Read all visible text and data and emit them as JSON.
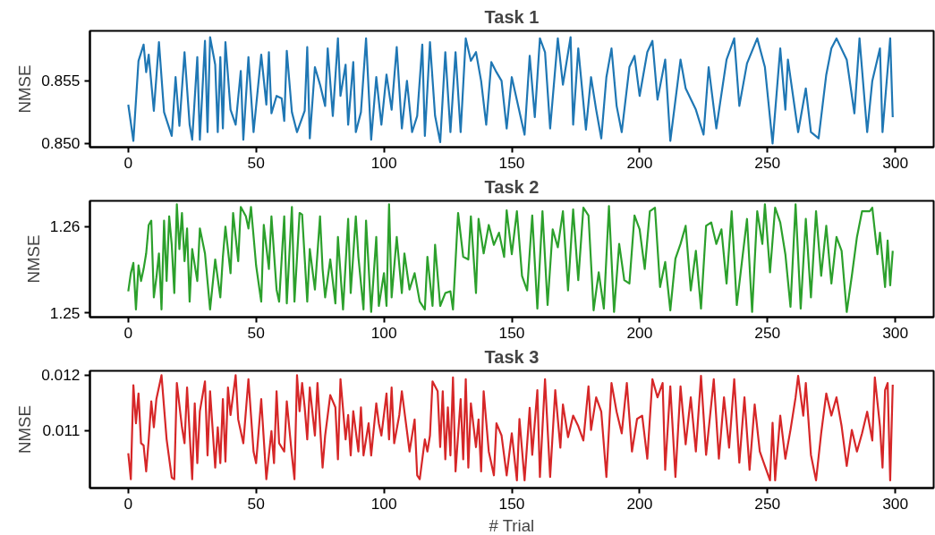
{
  "chart_data": [
    {
      "type": "line",
      "title": "Task 1",
      "ylabel": "NMSE",
      "xlim": [
        -15,
        315
      ],
      "xticks": [
        0,
        50,
        100,
        150,
        200,
        250,
        300
      ],
      "ylim": [
        0.8497,
        0.859
      ],
      "yticks": [
        {
          "value": 0.85,
          "label": "0.850"
        },
        0.855
      ],
      "line_style": "solid",
      "marker": "none",
      "series": [
        {
          "color": "#1f77b4",
          "x": [
            0,
            2,
            4,
            6,
            7,
            8,
            10,
            12,
            14,
            17,
            18.5,
            20,
            22,
            24,
            25,
            27,
            28,
            30,
            31,
            32,
            34,
            35,
            36,
            37,
            38,
            40,
            42,
            44,
            45,
            47,
            49,
            52,
            54,
            55,
            56,
            58,
            60,
            61,
            62,
            64,
            66,
            69,
            70,
            71,
            73,
            75,
            77,
            78,
            80,
            82,
            83,
            85,
            86,
            88,
            89,
            91,
            93,
            95,
            97,
            99,
            101,
            103,
            105,
            107,
            109,
            111,
            113,
            115,
            116,
            118,
            120,
            122,
            124,
            126,
            128,
            130,
            132,
            134,
            136,
            138,
            140,
            142,
            144,
            146,
            148,
            150,
            155,
            157,
            159,
            161,
            163,
            165,
            168,
            170,
            173,
            174,
            176,
            179,
            181,
            183,
            185,
            187,
            189,
            191,
            193,
            196,
            198,
            200,
            203,
            205,
            207,
            210,
            212,
            216,
            218,
            222,
            225,
            227,
            230,
            234,
            237,
            239,
            242,
            246,
            249,
            252,
            255,
            257,
            258,
            262,
            265,
            267,
            270,
            273,
            275,
            277,
            281,
            284,
            286,
            289,
            291,
            294,
            295,
            298,
            299
          ],
          "values": [
            0.8531,
            0.8502,
            0.8566,
            0.8579,
            0.8557,
            0.8571,
            0.8526,
            0.8581,
            0.8525,
            0.8506,
            0.8553,
            0.8514,
            0.8573,
            0.8515,
            0.8503,
            0.8569,
            0.8503,
            0.8582,
            0.8509,
            0.8585,
            0.8563,
            0.8509,
            0.8569,
            0.8512,
            0.8581,
            0.8527,
            0.8515,
            0.8558,
            0.8503,
            0.8569,
            0.8509,
            0.8571,
            0.8531,
            0.8573,
            0.8524,
            0.8538,
            0.8536,
            0.8518,
            0.8574,
            0.8525,
            0.8509,
            0.8526,
            0.8577,
            0.8504,
            0.8561,
            0.8547,
            0.853,
            0.8576,
            0.8522,
            0.8584,
            0.8538,
            0.8563,
            0.8515,
            0.8565,
            0.8509,
            0.8525,
            0.8584,
            0.8503,
            0.8553,
            0.8515,
            0.8555,
            0.8527,
            0.8577,
            0.8512,
            0.855,
            0.8509,
            0.8522,
            0.8579,
            0.8506,
            0.8581,
            0.8522,
            0.8501,
            0.8573,
            0.8509,
            0.8573,
            0.8509,
            0.8584,
            0.8566,
            0.8573,
            0.855,
            0.8515,
            0.8565,
            0.8557,
            0.855,
            0.8512,
            0.8553,
            0.8507,
            0.857,
            0.8521,
            0.8584,
            0.8573,
            0.8512,
            0.8584,
            0.8547,
            0.8585,
            0.8515,
            0.8576,
            0.8511,
            0.8553,
            0.8527,
            0.8504,
            0.8553,
            0.8576,
            0.853,
            0.8509,
            0.8561,
            0.857,
            0.8538,
            0.8573,
            0.8582,
            0.8535,
            0.8567,
            0.8502,
            0.8567,
            0.8544,
            0.8527,
            0.8507,
            0.8561,
            0.8512,
            0.8567,
            0.8584,
            0.853,
            0.8564,
            0.8584,
            0.8561,
            0.85,
            0.8576,
            0.8527,
            0.8567,
            0.8509,
            0.8544,
            0.8509,
            0.8504,
            0.8555,
            0.8576,
            0.8584,
            0.8567,
            0.8524,
            0.8584,
            0.8509,
            0.855,
            0.8576,
            0.8509,
            0.8584,
            0.8521
          ]
        }
      ]
    },
    {
      "type": "line",
      "title": "Task 2",
      "ylabel": "NMSE",
      "xlim": [
        -15,
        315
      ],
      "xticks": [
        0,
        50,
        100,
        150,
        200,
        250,
        300
      ],
      "ylim": [
        1.2495,
        1.263
      ],
      "yticks": [
        1.25,
        1.26
      ],
      "line_style": "solid",
      "marker": "none",
      "series": [
        {
          "color": "#2ca02c",
          "x": [
            0,
            1,
            2,
            3,
            4,
            5,
            6,
            7,
            8,
            9,
            10,
            11,
            12,
            13,
            14,
            15,
            16,
            17,
            18,
            19,
            20,
            21,
            22,
            23,
            24,
            25,
            27,
            28,
            30,
            32,
            34,
            36,
            37,
            38,
            40,
            41,
            43,
            44,
            46,
            47,
            48,
            50,
            52,
            53,
            55,
            56,
            58,
            59,
            61,
            62,
            64,
            65,
            67,
            68,
            70,
            71,
            73,
            75,
            76,
            77,
            79,
            81,
            82,
            84,
            86,
            87,
            89,
            90,
            92,
            93,
            95,
            97,
            98,
            100,
            101,
            102,
            103,
            105,
            107,
            108,
            110,
            112,
            114,
            116,
            117,
            119,
            120,
            122,
            124,
            126,
            127,
            129,
            131,
            133,
            134,
            136,
            137,
            139,
            141,
            143,
            145,
            147,
            148,
            150,
            152,
            154,
            156,
            158,
            160,
            162,
            164,
            166,
            168,
            170,
            172,
            174,
            176,
            178,
            180,
            182,
            184,
            186,
            188,
            190,
            192,
            194,
            196,
            198,
            200,
            202,
            204,
            206,
            208,
            210,
            212,
            214,
            216,
            218,
            220,
            222,
            224,
            226,
            228,
            230,
            232,
            234,
            236,
            238,
            240,
            242,
            244,
            246,
            248,
            249,
            251,
            253,
            255,
            257,
            259,
            261,
            263,
            265,
            267,
            269,
            271,
            273,
            275,
            277,
            279,
            281,
            283,
            285,
            287,
            290,
            291,
            293,
            294,
            296,
            297,
            298,
            299
          ],
          "values": [
            1.2525,
            1.2546,
            1.2558,
            1.2504,
            1.2555,
            1.2537,
            1.2551,
            1.2569,
            1.2602,
            1.2607,
            1.2518,
            1.2541,
            1.2569,
            1.2504,
            1.2607,
            1.2537,
            1.2612,
            1.2579,
            1.2523,
            1.2626,
            1.2574,
            1.2616,
            1.256,
            1.2598,
            1.2513,
            1.2574,
            1.2537,
            1.2598,
            1.2569,
            1.2504,
            1.2562,
            1.2518,
            1.2565,
            1.26,
            1.2546,
            1.2616,
            1.256,
            1.2623,
            1.2612,
            1.2598,
            1.2623,
            1.2555,
            1.2513,
            1.2602,
            1.2551,
            1.2612,
            1.2527,
            1.2513,
            1.2612,
            1.2511,
            1.2623,
            1.2513,
            1.2616,
            1.2614,
            1.2513,
            1.2574,
            1.2527,
            1.2612,
            1.2551,
            1.2518,
            1.2562,
            1.2511,
            1.2588,
            1.2504,
            1.2609,
            1.2523,
            1.2612,
            1.2565,
            1.2504,
            1.2607,
            1.2501,
            1.2588,
            1.2508,
            1.2546,
            1.2508,
            1.2626,
            1.2518,
            1.2588,
            1.2523,
            1.2569,
            1.2527,
            1.2546,
            1.2513,
            1.2504,
            1.2565,
            1.2508,
            1.2579,
            1.2508,
            1.2523,
            1.2525,
            1.2504,
            1.2616,
            1.2565,
            1.2562,
            1.2612,
            1.2523,
            1.2609,
            1.2569,
            1.2602,
            1.2579,
            1.2593,
            1.2565,
            1.2619,
            1.2568,
            1.2618,
            1.2543,
            1.2526,
            1.2613,
            1.2505,
            1.2618,
            1.2509,
            1.2597,
            1.2576,
            1.2618,
            1.2526,
            1.262,
            1.2538,
            1.2622,
            1.2613,
            1.2503,
            1.2547,
            1.2505,
            1.2624,
            1.2501,
            1.258,
            1.2538,
            1.2534,
            1.2613,
            1.2597,
            1.2551,
            1.2618,
            1.2622,
            1.253,
            1.2559,
            1.2503,
            1.2563,
            1.258,
            1.2601,
            1.2526,
            1.2572,
            1.2505,
            1.2601,
            1.2605,
            1.258,
            1.2597,
            1.2534,
            1.2618,
            1.2509,
            1.2559,
            1.2609,
            1.2501,
            1.2618,
            1.258,
            1.2626,
            1.2547,
            1.2622,
            1.2605,
            1.2568,
            1.2507,
            1.2626,
            1.2505,
            1.2609,
            1.2518,
            1.2618,
            1.2543,
            1.2601,
            1.2534,
            1.2588,
            1.2572,
            1.2501,
            1.2543,
            1.2588,
            1.2618,
            1.2618,
            1.2622,
            1.2568,
            1.2593,
            1.253,
            1.2584,
            1.2532,
            1.2572
          ]
        }
      ]
    },
    {
      "type": "line",
      "title": "Task 3",
      "ylabel": "NMSE",
      "xlabel": "# Trial",
      "xlim": [
        -15,
        315
      ],
      "xticks": [
        0,
        50,
        100,
        150,
        200,
        250,
        300
      ],
      "ylim": [
        0.00996,
        0.01208
      ],
      "yticks": [
        0.011,
        0.012
      ],
      "line_style": "solid",
      "marker": "none",
      "series": [
        {
          "color": "#d62728",
          "x": [
            0,
            1,
            2,
            3,
            4,
            5,
            6,
            7,
            8,
            9,
            10,
            11,
            13,
            15,
            17,
            18,
            19,
            21,
            22,
            23,
            25,
            26,
            27,
            28,
            30,
            31,
            32,
            34,
            35,
            36,
            37,
            38,
            39,
            40,
            42,
            43,
            45,
            47,
            49,
            50,
            52,
            54,
            56,
            57,
            58,
            59,
            61,
            62,
            64,
            65,
            66,
            67,
            68,
            69,
            70,
            71,
            73,
            74,
            76,
            77,
            79,
            81,
            82,
            83,
            85,
            86,
            87,
            88,
            90,
            91,
            92,
            94,
            95,
            97,
            98,
            99,
            101,
            102,
            103,
            104,
            106,
            107,
            109,
            110,
            112,
            113,
            114,
            116,
            117,
            118,
            119,
            121,
            122,
            123,
            124,
            125,
            126,
            127,
            128,
            130,
            131,
            132,
            133,
            134,
            136,
            137,
            138,
            139,
            141,
            143,
            144,
            146,
            148,
            150,
            152,
            153,
            155,
            157,
            158,
            160,
            161,
            163,
            165,
            167,
            169,
            170,
            172,
            174,
            176,
            178,
            180,
            181,
            183,
            185,
            187,
            189,
            191,
            193,
            195,
            197,
            199,
            201,
            203,
            205,
            207,
            209,
            210,
            212,
            214,
            216,
            218,
            220,
            222,
            224,
            226,
            228,
            229,
            231,
            233,
            235,
            237,
            239,
            241,
            243,
            245,
            247,
            249,
            251,
            252,
            253,
            255,
            257,
            259,
            261,
            262,
            264,
            265,
            267,
            269,
            271,
            273,
            275,
            277,
            279,
            281,
            283,
            285,
            287,
            289,
            291,
            292,
            294,
            295,
            296,
            297,
            298,
            299
          ],
          "values": [
            0.01059,
            0.01012,
            0.01182,
            0.01113,
            0.01167,
            0.01077,
            0.01073,
            0.01026,
            0.01084,
            0.01153,
            0.01106,
            0.01157,
            0.012,
            0.01084,
            0.01015,
            0.01012,
            0.01186,
            0.01106,
            0.01077,
            0.01178,
            0.01012,
            0.01149,
            0.01041,
            0.01135,
            0.01189,
            0.01055,
            0.01171,
            0.01033,
            0.01106,
            0.01041,
            0.01157,
            0.01044,
            0.01178,
            0.01128,
            0.012,
            0.0112,
            0.01077,
            0.01193,
            0.01062,
            0.01041,
            0.01157,
            0.01012,
            0.01099,
            0.01041,
            0.01171,
            0.01077,
            0.01062,
            0.01153,
            0.01055,
            0.01012,
            0.012,
            0.01135,
            0.01186,
            0.01142,
            0.01084,
            0.01178,
            0.01091,
            0.01186,
            0.01033,
            0.01091,
            0.01164,
            0.01142,
            0.01048,
            0.01193,
            0.01084,
            0.01128,
            0.01055,
            0.01135,
            0.01062,
            0.01142,
            0.01055,
            0.01113,
            0.01055,
            0.01149,
            0.01113,
            0.01091,
            0.01167,
            0.01084,
            0.01178,
            0.01077,
            0.01128,
            0.01171,
            0.01099,
            0.01062,
            0.0112,
            0.01019,
            0.01012,
            0.01084,
            0.01062,
            0.01091,
            0.01189,
            0.01171,
            0.0107,
            0.01171,
            0.01048,
            0.01142,
            0.01055,
            0.01196,
            0.01026,
            0.01157,
            0.01048,
            0.01193,
            0.01033,
            0.01149,
            0.0107,
            0.0112,
            0.01026,
            0.01171,
            0.01062,
            0.01019,
            0.01113,
            0.01091,
            0.01019,
            0.01095,
            0.0101,
            0.01121,
            0.0101,
            0.01141,
            0.01056,
            0.01173,
            0.01016,
            0.01193,
            0.01016,
            0.01173,
            0.01069,
            0.01147,
            0.01088,
            0.01127,
            0.01108,
            0.01082,
            0.0118,
            0.01101,
            0.0116,
            0.01134,
            0.01016,
            0.01186,
            0.01134,
            0.01095,
            0.01186,
            0.01062,
            0.01121,
            0.01127,
            0.01049,
            0.01193,
            0.0116,
            0.01186,
            0.01029,
            0.0118,
            0.01016,
            0.0118,
            0.01075,
            0.0116,
            0.01062,
            0.01199,
            0.01056,
            0.01147,
            0.01193,
            0.01049,
            0.0116,
            0.01069,
            0.01193,
            0.01042,
            0.0116,
            0.01029,
            0.01147,
            0.01062,
            0.01036,
            0.0101,
            0.01114,
            0.0101,
            0.01127,
            0.01049,
            0.01101,
            0.0116,
            0.01199,
            0.01127,
            0.01186,
            0.01056,
            0.0101,
            0.01095,
            0.01167,
            0.01127,
            0.0116,
            0.01108,
            0.01036,
            0.01101,
            0.01062,
            0.01095,
            0.01134,
            0.01082,
            0.01196,
            0.01108,
            0.01033,
            0.01173,
            0.01186,
            0.0101,
            0.01183
          ]
        }
      ]
    }
  ]
}
